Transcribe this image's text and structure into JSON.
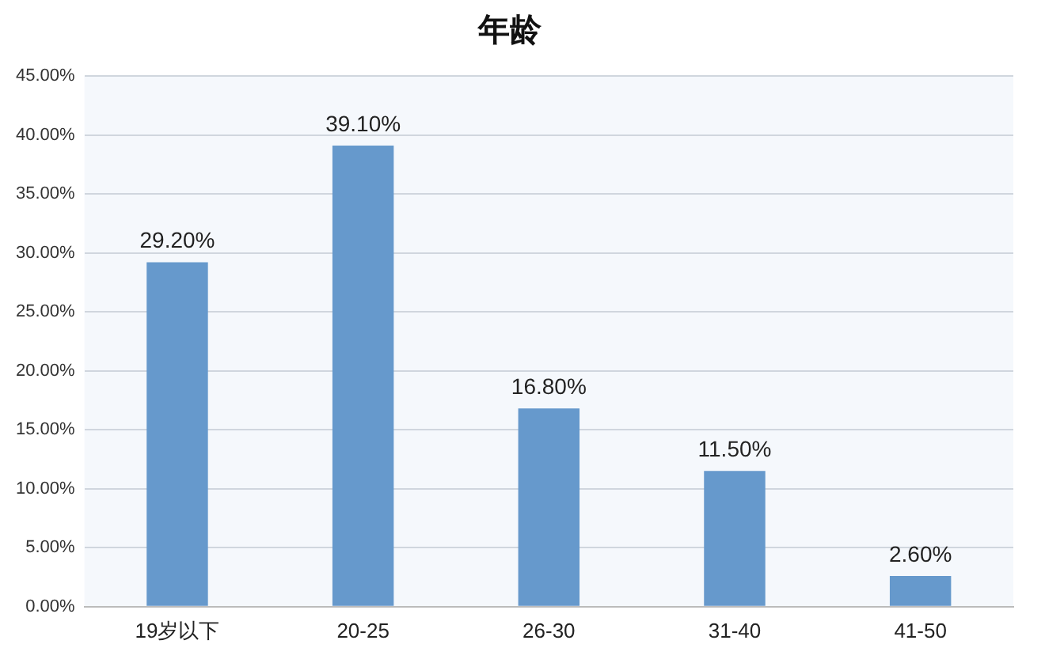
{
  "chart_data": {
    "type": "bar",
    "title": "年龄",
    "categories": [
      "19岁以下",
      "20-25",
      "26-30",
      "31-40",
      "41-50"
    ],
    "values": [
      29.2,
      39.1,
      16.8,
      11.5,
      2.6
    ],
    "value_labels": [
      "29.20%",
      "39.10%",
      "16.80%",
      "11.50%",
      "2.60%"
    ],
    "color": "#6699cc",
    "ylim": [
      0,
      45
    ],
    "yticks": [
      {
        "value": 0,
        "label": "0.00%"
      },
      {
        "value": 5,
        "label": "5.00%"
      },
      {
        "value": 10,
        "label": "10.00%"
      },
      {
        "value": 15,
        "label": "15.00%"
      },
      {
        "value": 20,
        "label": "20.00%"
      },
      {
        "value": 25,
        "label": "25.00%"
      },
      {
        "value": 30,
        "label": "30.00%"
      },
      {
        "value": 35,
        "label": "35.00%"
      },
      {
        "value": 40,
        "label": "40.00%"
      },
      {
        "value": 45,
        "label": "45.00%"
      }
    ],
    "grid": "y",
    "legend": false
  }
}
